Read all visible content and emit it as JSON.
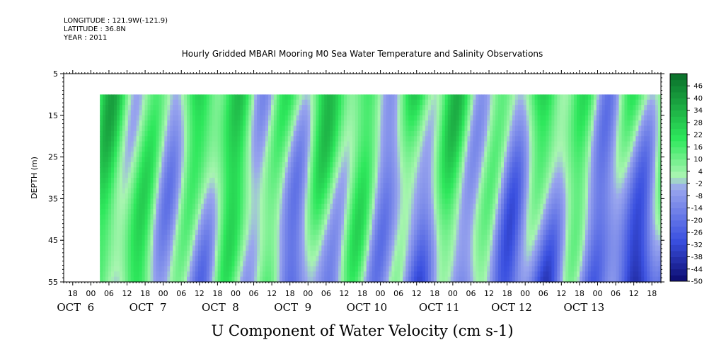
{
  "header": {
    "longitude": "LONGITUDE : 121.9W(-121.9)",
    "latitude": "LATITUDE : 36.8N",
    "year": "YEAR : 2011"
  },
  "colors": {
    "dark_navy": "#0b0b6e",
    "blue": "#3a50e0",
    "light_blue": "#9aa6ee",
    "pale_green": "#a8f5b0",
    "green": "#2ee85c",
    "dark_green": "#0a6e2a"
  },
  "chart_data": {
    "type": "heatmap",
    "title": "Hourly Gridded MBARI Mooring M0 Sea Water Temperature and Salinity Observations",
    "xlabel": "",
    "ylabel": "DEPTH (m)",
    "colorbar_label": "U Component of Water Velocity (cm s-1)",
    "y_ticks": [
      5,
      15,
      25,
      35,
      45,
      55
    ],
    "y_range": [
      5,
      55
    ],
    "y_inverted": true,
    "data_depth_range": [
      10,
      55
    ],
    "x_hour_ticks": [
      "18",
      "00",
      "06",
      "12",
      "18",
      "00",
      "06",
      "12",
      "18",
      "00",
      "06",
      "12",
      "18",
      "00",
      "06",
      "12",
      "18",
      "00",
      "06",
      "12",
      "18",
      "00",
      "06",
      "12",
      "18",
      "00",
      "06",
      "12",
      "18",
      "00",
      "06",
      "12",
      "18"
    ],
    "x_date_labels": [
      "OCT  6",
      "OCT  7",
      "OCT  8",
      "OCT  9",
      "OCT 10",
      "OCT 11",
      "OCT 12",
      "OCT 13"
    ],
    "x_range": [
      "2011-10-05T15:00",
      "2011-10-13T21:00"
    ],
    "data_time_range": [
      "2011-10-06T03:00",
      "2011-10-13T21:00"
    ],
    "colorbar_levels": [
      "46",
      "40",
      "34",
      "28",
      "22",
      "16",
      "10",
      "4",
      "-2",
      "-8",
      "-14",
      "-20",
      "-26",
      "-32",
      "-38",
      "-44",
      "-50"
    ],
    "colorbar_range": [
      -50,
      52
    ]
  }
}
